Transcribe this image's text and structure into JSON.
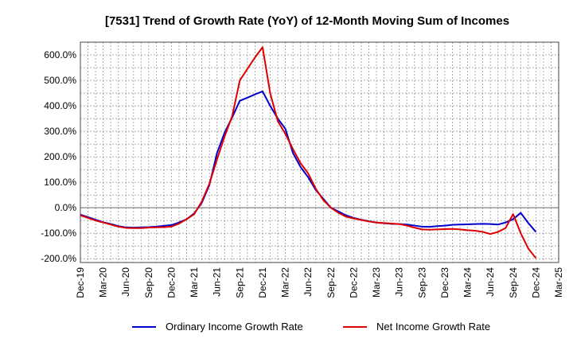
{
  "chart_data": {
    "type": "line",
    "title": "[7531]  Trend of Growth Rate (YoY) of 12-Month Moving Sum of Incomes",
    "x_tick_labels": [
      "Dec-19",
      "Mar-20",
      "Jun-20",
      "Sep-20",
      "Dec-20",
      "Mar-21",
      "Jun-21",
      "Sep-21",
      "Dec-21",
      "Mar-22",
      "Jun-22",
      "Sep-22",
      "Dec-22",
      "Mar-23",
      "Jun-23",
      "Sep-23",
      "Dec-23",
      "Mar-24",
      "Jun-24",
      "Sep-24",
      "Dec-24",
      "Mar-25"
    ],
    "y_ticks": [
      600,
      500,
      400,
      300,
      200,
      100,
      0,
      -100,
      -200
    ],
    "y_tick_labels": [
      "600.0%",
      "500.0%",
      "400.0%",
      "300.0%",
      "200.0%",
      "100.0%",
      "0.0%",
      "-100.0%",
      "-200.0%"
    ],
    "ylim": [
      -215,
      650
    ],
    "grid": true,
    "legend_position": "bottom",
    "x": [
      "Dec-19",
      "Jan-20",
      "Feb-20",
      "Mar-20",
      "Apr-20",
      "May-20",
      "Jun-20",
      "Jul-20",
      "Aug-20",
      "Sep-20",
      "Oct-20",
      "Nov-20",
      "Dec-20",
      "Jan-21",
      "Feb-21",
      "Mar-21",
      "Apr-21",
      "May-21",
      "Jun-21",
      "Jul-21",
      "Aug-21",
      "Sep-21",
      "Oct-21",
      "Nov-21",
      "Dec-21",
      "Jan-22",
      "Feb-22",
      "Mar-22",
      "Apr-22",
      "May-22",
      "Jun-22",
      "Jul-22",
      "Aug-22",
      "Sep-22",
      "Oct-22",
      "Nov-22",
      "Dec-22",
      "Jan-23",
      "Feb-23",
      "Mar-23",
      "Apr-23",
      "May-23",
      "Jun-23",
      "Jul-23",
      "Aug-23",
      "Sep-23",
      "Oct-23",
      "Nov-23",
      "Dec-23",
      "Jan-24",
      "Feb-24",
      "Mar-24",
      "Apr-24",
      "May-24",
      "Jun-24",
      "Jul-24",
      "Aug-24",
      "Sep-24",
      "Oct-24",
      "Nov-24",
      "Dec-24"
    ],
    "series": [
      {
        "name": "Ordinary Income Growth Rate",
        "color": "#0000cc",
        "values": [
          -27,
          -37,
          -47,
          -57,
          -64,
          -72,
          -77,
          -78,
          -77,
          -76,
          -74,
          -71,
          -68,
          -58,
          -45,
          -22,
          20,
          90,
          215,
          295,
          355,
          420,
          432,
          445,
          457,
          400,
          350,
          310,
          215,
          160,
          120,
          70,
          35,
          0,
          -15,
          -30,
          -40,
          -47,
          -53,
          -58,
          -61,
          -63,
          -64,
          -66,
          -70,
          -74,
          -75,
          -72,
          -70,
          -67,
          -66,
          -65,
          -64,
          -63,
          -64,
          -66,
          -58,
          -45,
          -20,
          -60,
          -95
        ]
      },
      {
        "name": "Net Income Growth Rate",
        "color": "#dd0000",
        "values": [
          -30,
          -40,
          -50,
          -58,
          -66,
          -74,
          -79,
          -80,
          -80,
          -78,
          -77,
          -76,
          -74,
          -62,
          -45,
          -25,
          25,
          95,
          190,
          280,
          360,
          500,
          545,
          590,
          630,
          450,
          340,
          290,
          230,
          175,
          135,
          75,
          30,
          0,
          -20,
          -35,
          -42,
          -48,
          -54,
          -58,
          -60,
          -62,
          -64,
          -70,
          -78,
          -85,
          -86,
          -85,
          -84,
          -83,
          -85,
          -88,
          -90,
          -95,
          -103,
          -95,
          -80,
          -25,
          -100,
          -160,
          -198
        ]
      }
    ]
  }
}
